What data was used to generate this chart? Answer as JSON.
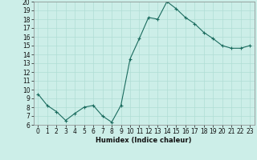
{
  "x": [
    0,
    1,
    2,
    3,
    4,
    5,
    6,
    7,
    8,
    9,
    10,
    11,
    12,
    13,
    14,
    15,
    16,
    17,
    18,
    19,
    20,
    21,
    22,
    23
  ],
  "y": [
    9.5,
    8.2,
    7.5,
    6.5,
    7.3,
    8.0,
    8.2,
    7.0,
    6.3,
    8.2,
    13.5,
    15.8,
    18.2,
    18.0,
    20.0,
    19.2,
    18.2,
    17.5,
    16.5,
    15.8,
    15.0,
    14.7,
    14.7,
    15.0
  ],
  "line_color": "#1a6b5e",
  "bg_color": "#cceee8",
  "grid_color": "#b0ddd5",
  "xlabel": "Humidex (Indice chaleur)",
  "ylim": [
    6,
    20
  ],
  "xlim": [
    -0.5,
    23.5
  ],
  "yticks": [
    6,
    7,
    8,
    9,
    10,
    11,
    12,
    13,
    14,
    15,
    16,
    17,
    18,
    19,
    20
  ],
  "xticks": [
    0,
    1,
    2,
    3,
    4,
    5,
    6,
    7,
    8,
    9,
    10,
    11,
    12,
    13,
    14,
    15,
    16,
    17,
    18,
    19,
    20,
    21,
    22,
    23
  ],
  "tick_fontsize": 5.5,
  "xlabel_fontsize": 6.0
}
